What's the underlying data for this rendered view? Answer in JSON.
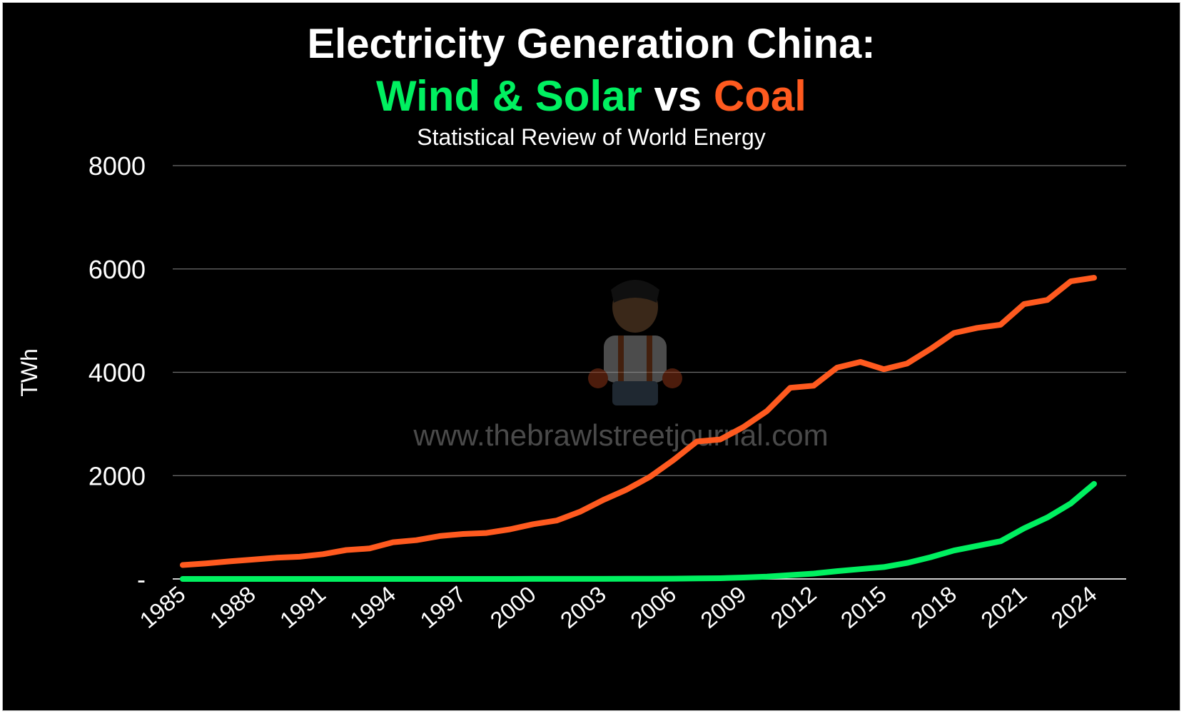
{
  "title": {
    "line1": "Electricity Generation China:",
    "part_green": "Wind & Solar",
    "part_white": " vs ",
    "part_orange": "Coal"
  },
  "subtitle": "Statistical Review of World Energy",
  "watermark": "www.thebrawlstreetjournal.com",
  "colors": {
    "background": "#000000",
    "wind_solar": "#00f060",
    "coal": "#ff5a1f",
    "grid": "#6e6e6e",
    "text": "#ffffff"
  },
  "chart_data": {
    "type": "line",
    "ylabel": "TWh",
    "xlabel": "",
    "ylim": [
      0,
      8000
    ],
    "yticks": [
      0,
      2000,
      4000,
      6000,
      8000
    ],
    "ytick_labels": [
      "-",
      "2000",
      "4000",
      "6000",
      "8000"
    ],
    "xtick_labels": [
      "1985",
      "1988",
      "1991",
      "1994",
      "1997",
      "2000",
      "2003",
      "2006",
      "2009",
      "2012",
      "2015",
      "2018",
      "2021",
      "2024"
    ],
    "grid": true,
    "legend": "none",
    "x": [
      1985,
      1986,
      1987,
      1988,
      1989,
      1990,
      1991,
      1992,
      1993,
      1994,
      1995,
      1996,
      1997,
      1998,
      1999,
      2000,
      2001,
      2002,
      2003,
      2004,
      2005,
      2006,
      2007,
      2008,
      2009,
      2010,
      2011,
      2012,
      2013,
      2014,
      2015,
      2016,
      2017,
      2018,
      2019,
      2020,
      2021,
      2022,
      2023,
      2024
    ],
    "series": [
      {
        "name": "Coal",
        "color": "#ff5a1f",
        "values": [
          270,
          300,
          340,
          375,
          410,
          430,
          480,
          560,
          590,
          710,
          750,
          830,
          870,
          890,
          960,
          1060,
          1130,
          1300,
          1530,
          1730,
          1980,
          2300,
          2660,
          2700,
          2940,
          3250,
          3700,
          3740,
          4090,
          4200,
          4060,
          4170,
          4450,
          4760,
          4860,
          4920,
          5320,
          5400,
          5760,
          5830
        ]
      },
      {
        "name": "Wind & Solar",
        "color": "#00f060",
        "values": [
          0,
          0,
          0,
          0,
          0,
          0,
          0,
          0,
          0,
          0,
          0,
          0,
          0,
          0,
          0,
          1,
          1,
          2,
          2,
          3,
          3,
          5,
          10,
          14,
          28,
          46,
          74,
          104,
          150,
          190,
          230,
          310,
          420,
          550,
          640,
          730,
          980,
          1190,
          1460,
          1840
        ]
      }
    ]
  }
}
